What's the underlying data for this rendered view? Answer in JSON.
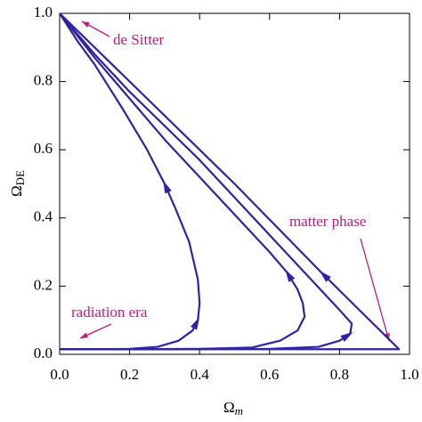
{
  "chart_data": {
    "type": "line",
    "xlabel": {
      "main": "Ω",
      "sub": "m"
    },
    "ylabel": {
      "main": "Ω",
      "sub": "DE"
    },
    "annotations": [
      "de Sitter",
      "matter phase",
      "radiation era"
    ],
    "annotation_color": "#c2187a",
    "xlim": [
      0,
      1
    ],
    "ylim": [
      0,
      1
    ],
    "xticks": [
      {
        "value": 0,
        "label": "0.0"
      },
      0.2,
      0.4,
      0.6,
      0.8,
      {
        "value": 1,
        "label": "1.0"
      }
    ],
    "yticks": [
      {
        "value": 0,
        "label": "0.0"
      },
      0.2,
      0.4,
      0.6,
      0.8,
      {
        "value": 1,
        "label": "1.0"
      }
    ],
    "series": [
      {
        "color": "#2e23a6",
        "x": [
          0,
          0.1,
          0.2,
          0.28,
          0.34,
          0.38,
          0.395,
          0.4,
          0.395,
          0.37,
          0.33,
          0.3,
          0.25,
          0.18,
          0.1,
          0.05,
          0
        ],
        "values": [
          0.015,
          0.015,
          0.016,
          0.022,
          0.04,
          0.07,
          0.1,
          0.15,
          0.22,
          0.33,
          0.43,
          0.5,
          0.6,
          0.72,
          0.85,
          0.92,
          1
        ]
      },
      {
        "color": "#2e23a6",
        "x": [
          0,
          0.2,
          0.4,
          0.55,
          0.63,
          0.68,
          0.7,
          0.695,
          0.68,
          0.65,
          0.6,
          0.5,
          0.4,
          0.3,
          0.2,
          0.1,
          0
        ],
        "values": [
          0.015,
          0.015,
          0.016,
          0.02,
          0.04,
          0.07,
          0.11,
          0.15,
          0.19,
          0.24,
          0.3,
          0.41,
          0.52,
          0.63,
          0.75,
          0.87,
          1
        ]
      },
      {
        "color": "#2e23a6",
        "x": [
          0,
          0.3,
          0.6,
          0.74,
          0.8,
          0.83,
          0.835,
          0.8,
          0.7,
          0.6,
          0.5,
          0.4,
          0.3,
          0.2,
          0.1,
          0
        ],
        "values": [
          0.015,
          0.015,
          0.016,
          0.022,
          0.04,
          0.06,
          0.09,
          0.13,
          0.24,
          0.35,
          0.46,
          0.57,
          0.67,
          0.77,
          0.88,
          1
        ]
      },
      {
        "color": "#2e23a6",
        "x": [
          0,
          0.5,
          0.97,
          0.75,
          0.5,
          0.25,
          0
        ],
        "values": [
          0.015,
          0.015,
          0.015,
          0.238,
          0.5,
          0.75,
          1
        ]
      }
    ]
  }
}
